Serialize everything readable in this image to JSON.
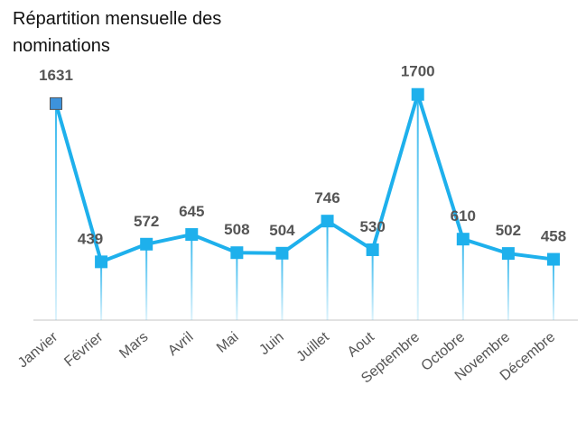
{
  "chart_data": {
    "type": "line",
    "title": "Répartition mensuelle des nominations",
    "categories": [
      "Janvier",
      "Février",
      "Mars",
      "Avril",
      "Mai",
      "Juin",
      "Juillet",
      "Aout",
      "Septembre",
      "Octobre",
      "Novembre",
      "Décembre"
    ],
    "values": [
      1631,
      439,
      572,
      645,
      508,
      504,
      746,
      530,
      1700,
      610,
      502,
      458
    ],
    "color": "#1eb0ec",
    "ylim": [
      0,
      1800
    ]
  }
}
